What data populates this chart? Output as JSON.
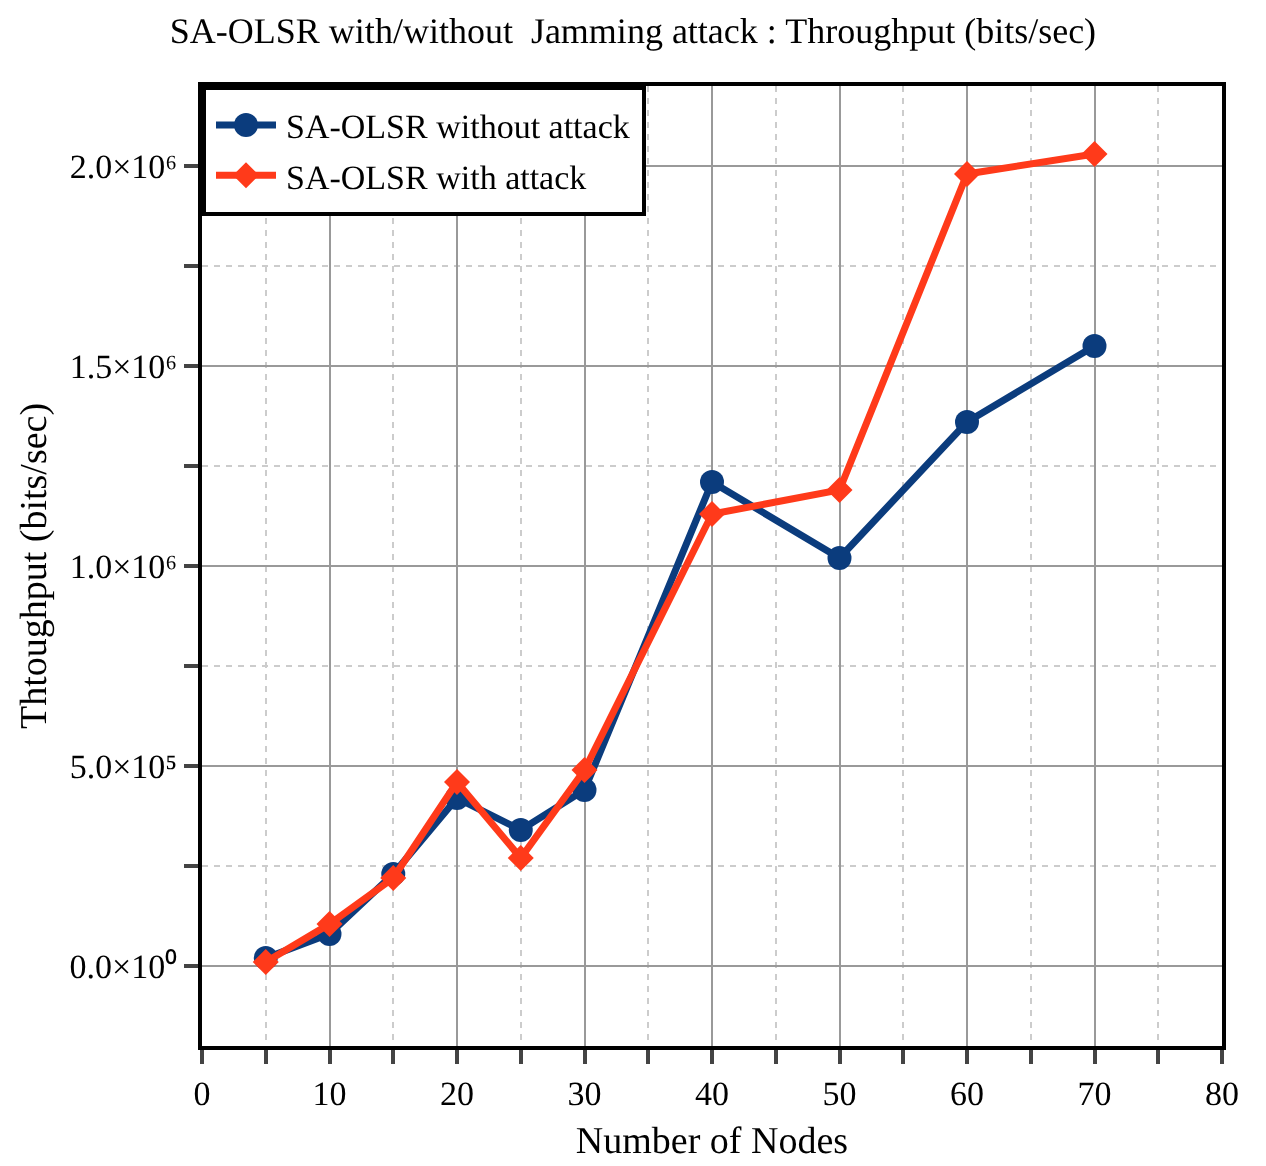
{
  "chart_data": {
    "type": "line",
    "title": "SA-OLSR with/without  Jamming attack : Throughput (bits/sec)",
    "xlabel": "Number of Nodes",
    "ylabel": "Thtoughput (bits/sec)",
    "x": [
      5,
      10,
      15,
      20,
      25,
      30,
      40,
      50,
      60,
      70
    ],
    "series": [
      {
        "name": "SA-OLSR without attack",
        "color": "#0b3c7d",
        "marker": "circle",
        "values": [
          20000,
          80000,
          230000,
          420000,
          340000,
          440000,
          1210000,
          1020000,
          1360000,
          1550000
        ]
      },
      {
        "name": "SA-OLSR with attack",
        "color": "#ff3a1a",
        "marker": "diamond",
        "values": [
          10000,
          105000,
          220000,
          460000,
          270000,
          490000,
          1130000,
          1190000,
          1980000,
          2030000
        ]
      }
    ],
    "xlim": [
      0,
      80
    ],
    "xticks": [
      0,
      10,
      20,
      30,
      40,
      50,
      60,
      70,
      80
    ],
    "ylim": [
      -200000,
      2200000
    ],
    "yticks": [
      {
        "value": 0,
        "label": "0.0×10⁰"
      },
      {
        "value": 500000,
        "label": "5.0×10⁵"
      },
      {
        "value": 1000000,
        "label": "1.0×10⁶"
      },
      {
        "value": 1500000,
        "label": "1.5×10⁶"
      },
      {
        "value": 2000000,
        "label": "2.0×10⁶"
      }
    ],
    "grid": true,
    "legend": "top left",
    "line_style": "solid"
  }
}
